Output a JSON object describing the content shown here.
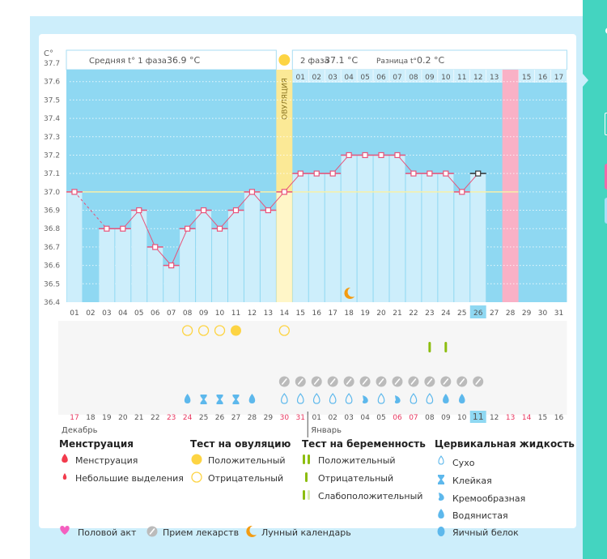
{
  "chart_data": {
    "type": "line",
    "title": "",
    "ylabel": "C°",
    "ylim": [
      36.4,
      37.7
    ],
    "yticks": [
      "37.7",
      "37.6",
      "37.5",
      "37.4",
      "37.3",
      "37.2",
      "37.1",
      "37.0",
      "36.9",
      "36.8",
      "36.7",
      "36.6",
      "36.5",
      "36.4"
    ],
    "cycle_days": [
      "01",
      "02",
      "03",
      "04",
      "05",
      "06",
      "07",
      "08",
      "09",
      "10",
      "11",
      "12",
      "13",
      "14",
      "15",
      "16",
      "17",
      "18",
      "19",
      "20",
      "21",
      "22",
      "23",
      "24",
      "25",
      "26",
      "27",
      "28",
      "29",
      "30",
      "31"
    ],
    "second_phase_days": [
      "01",
      "02",
      "03",
      "04",
      "05",
      "06",
      "07",
      "08",
      "09",
      "10",
      "11",
      "12",
      "13",
      "14",
      "15",
      "16",
      "17"
    ],
    "temperatures": [
      37.0,
      null,
      36.8,
      36.8,
      36.9,
      36.7,
      36.6,
      36.8,
      36.9,
      36.8,
      36.9,
      37.0,
      36.9,
      37.0,
      37.1,
      37.1,
      37.1,
      37.2,
      37.2,
      37.2,
      37.2,
      37.1,
      37.1,
      37.1,
      37.0,
      37.1
    ],
    "coverline": 37.0,
    "ovulation_day": 14,
    "current_day": 26,
    "expected_period_day": 28,
    "moon_day": 18,
    "ovulation_tests": {
      "negative": [
        8,
        9,
        10,
        14
      ],
      "positive": [
        11
      ]
    },
    "pregnancy_tests": {
      "negative": [
        23,
        24
      ]
    },
    "medication_days": [
      14,
      15,
      16,
      17,
      18,
      19,
      20,
      21,
      22,
      23,
      24,
      25,
      26
    ],
    "cervical_fluid": [
      {
        "day": 8,
        "type": "watery"
      },
      {
        "day": 9,
        "type": "sticky"
      },
      {
        "day": 10,
        "type": "sticky"
      },
      {
        "day": 11,
        "type": "sticky"
      },
      {
        "day": 12,
        "type": "watery"
      },
      {
        "day": 14,
        "type": "dry"
      },
      {
        "day": 15,
        "type": "dry"
      },
      {
        "day": 16,
        "type": "dry"
      },
      {
        "day": 17,
        "type": "dry"
      },
      {
        "day": 18,
        "type": "dry"
      },
      {
        "day": 19,
        "type": "creamy"
      },
      {
        "day": 20,
        "type": "dry"
      },
      {
        "day": 21,
        "type": "creamy"
      },
      {
        "day": 22,
        "type": "dry"
      },
      {
        "day": 23,
        "type": "dry"
      },
      {
        "day": 24,
        "type": "watery"
      },
      {
        "day": 25,
        "type": "watery"
      }
    ],
    "calendar_dates": [
      {
        "d": "17",
        "red": true
      },
      {
        "d": "18"
      },
      {
        "d": "19"
      },
      {
        "d": "20"
      },
      {
        "d": "21"
      },
      {
        "d": "22"
      },
      {
        "d": "23",
        "red": true
      },
      {
        "d": "24",
        "red": true
      },
      {
        "d": "25"
      },
      {
        "d": "26"
      },
      {
        "d": "27"
      },
      {
        "d": "28"
      },
      {
        "d": "29"
      },
      {
        "d": "30",
        "red": true
      },
      {
        "d": "31",
        "red": true
      },
      {
        "d": "01"
      },
      {
        "d": "02"
      },
      {
        "d": "03"
      },
      {
        "d": "04"
      },
      {
        "d": "05"
      },
      {
        "d": "06",
        "red": true
      },
      {
        "d": "07",
        "red": true
      },
      {
        "d": "08"
      },
      {
        "d": "09"
      },
      {
        "d": "10"
      },
      {
        "d": "11",
        "today": true
      },
      {
        "d": "12"
      },
      {
        "d": "13",
        "red": true
      },
      {
        "d": "14",
        "red": true
      },
      {
        "d": "15"
      },
      {
        "d": "16"
      }
    ],
    "months": [
      "Декабрь",
      "Январь"
    ]
  },
  "header": {
    "phase1_label": "Средняя t° 1 фаза",
    "phase1_value": "36.9 °C",
    "phase2_label": "2 фаза",
    "phase2_value": "37.1 °C",
    "diff_label": "Разница t°",
    "diff_value": "0.2 °C",
    "ovulation_label": "ОВУЛЯЦИЯ"
  },
  "legend": {
    "menstruation": {
      "title": "Менструация",
      "items": [
        "Менструация",
        "Небольшие выделения"
      ]
    },
    "ovulation_test": {
      "title": "Тест на овуляцию",
      "items": [
        "Положительный",
        "Отрицательный"
      ]
    },
    "pregnancy_test": {
      "title": "Тест на беременность",
      "items": [
        "Положительный",
        "Отрицательный",
        "Слабоположительный"
      ]
    },
    "cervical_fluid": {
      "title": "Цервикальная жидкость",
      "items": [
        "Сухо",
        "Клейкая",
        "Кремообразная",
        "Водянистая",
        "Яичный белок"
      ]
    },
    "other": [
      "Половой акт",
      "Прием лекарств",
      "Лунный календарь"
    ]
  },
  "colors": {
    "plot_bg": "#8fd8f2",
    "bar": "#cdeefb",
    "line": "#e8537a",
    "ovulation": "#fbe996",
    "period": "#f9b1c6",
    "test_yellow": "#fdd443",
    "preg_green": "#8cbd0e",
    "fluid_blue": "#5db8ec",
    "pill_gray": "#bbbbbb",
    "moon": "#f39c12",
    "red_date": "#e8365f",
    "sidebar": "#44d4c0"
  }
}
